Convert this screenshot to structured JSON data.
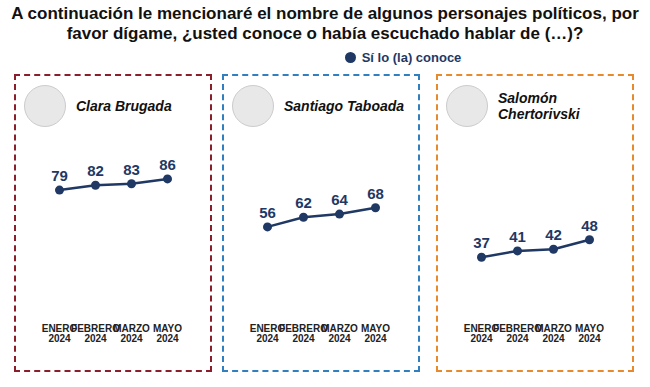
{
  "title": "A continuación le mencionaré el nombre de algunos personajes políticos, por favor dígame, ¿usted conoce o había escuchado hablar de (…)?",
  "chart_data": [
    {
      "type": "line",
      "title": "Clara Brugada",
      "categories": [
        "ENERO 2024",
        "FEBRERO 2024",
        "MARZO 2024",
        "MAYO 2024"
      ],
      "series": [
        {
          "name": "Sí lo (la) conoce",
          "color": "#1f3864",
          "values": [
            79,
            82,
            83,
            86
          ]
        }
      ],
      "ylim": [
        0,
        100
      ],
      "tick_labels": "x",
      "data_labels": true,
      "marker": "circle",
      "legend": "top"
    },
    {
      "type": "line",
      "title": "Santiago Taboada",
      "categories": [
        "ENERO 2024",
        "FEBRERO 2024",
        "MARZO 2024",
        "MAYO 2024"
      ],
      "series": [
        {
          "name": "Sí lo (la) conoce",
          "color": "#1f3864",
          "values": [
            56,
            62,
            64,
            68
          ]
        }
      ],
      "ylim": [
        0,
        100
      ],
      "tick_labels": "x",
      "data_labels": true,
      "marker": "circle",
      "legend": "top"
    },
    {
      "type": "line",
      "title": "Salomón Chertorivski",
      "categories": [
        "ENERO 2024",
        "FEBRERO 2024",
        "MARZO 2024",
        "MAYO 2024"
      ],
      "series": [
        {
          "name": "Sí lo (la) conoce",
          "color": "#1f3864",
          "values": [
            37,
            41,
            42,
            48
          ]
        }
      ],
      "ylim": [
        0,
        100
      ],
      "tick_labels": "x",
      "data_labels": true,
      "marker": "circle",
      "legend": "top"
    }
  ]
}
